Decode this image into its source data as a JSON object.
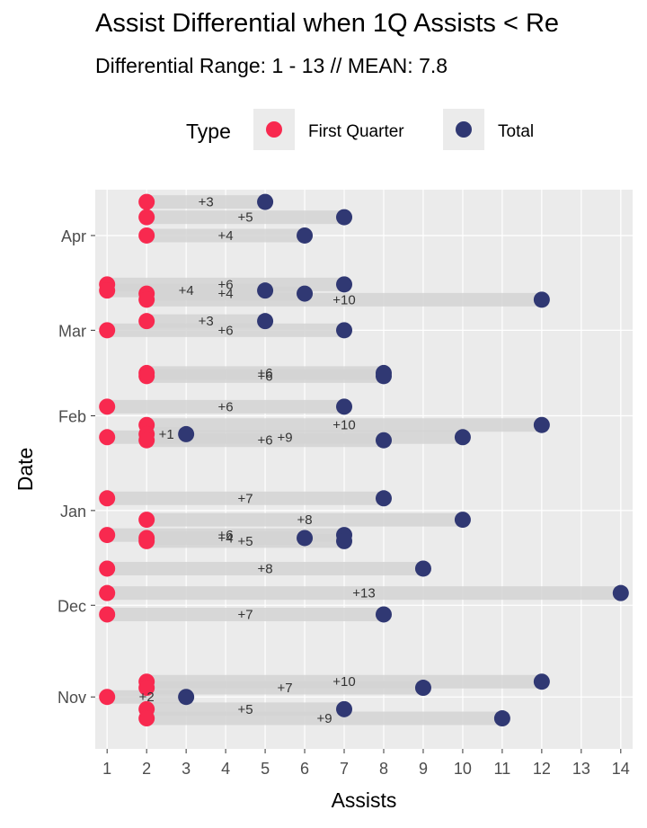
{
  "chart_data": {
    "type": "dumbbell",
    "title": "Assist Differential when 1Q Assists < Re",
    "subtitle": "Differential Range:  1 - 13 // MEAN: 7.8",
    "xlabel": "Assists",
    "ylabel": "Date",
    "xlim": [
      0.7,
      14.3
    ],
    "x_ticks": [
      1,
      2,
      3,
      4,
      5,
      6,
      7,
      8,
      9,
      10,
      11,
      12,
      13,
      14
    ],
    "y_tick_labels": [
      "Nov",
      "Dec",
      "Jan",
      "Feb",
      "Mar",
      "Apr"
    ],
    "y_tick_positions": [
      0,
      30,
      61,
      92,
      120,
      151
    ],
    "y_range": [
      -17,
      166
    ],
    "legend": {
      "title": "Type",
      "placement": "top",
      "entries": [
        {
          "label": "First Quarter",
          "color": "#f8294f"
        },
        {
          "label": "Total",
          "color": "#303873"
        }
      ]
    },
    "colors": {
      "first_quarter": "#f8294f",
      "total": "#303873",
      "segment": "#d3d3d3",
      "panel": "#ebebeb"
    },
    "series": [
      {
        "name": "First Quarter",
        "key": "first"
      },
      {
        "name": "Total",
        "key": "total"
      }
    ],
    "games": [
      {
        "day": 162,
        "first": 2,
        "total": 5,
        "label": "+3"
      },
      {
        "day": 157,
        "first": 2,
        "total": 7,
        "label": "+5"
      },
      {
        "day": 151,
        "first": 2,
        "total": 6,
        "label": "+4"
      },
      {
        "day": 135,
        "first": 1,
        "total": 7,
        "label": "+6"
      },
      {
        "day": 133,
        "first": 1,
        "total": 5,
        "label": "+4"
      },
      {
        "day": 132,
        "first": 2,
        "total": 6,
        "label": "+4"
      },
      {
        "day": 130,
        "first": 2,
        "total": 12,
        "label": "+10"
      },
      {
        "day": 123,
        "first": 2,
        "total": 5,
        "label": "+3"
      },
      {
        "day": 120,
        "first": 1,
        "total": 7,
        "label": "+6"
      },
      {
        "day": 106,
        "first": 2,
        "total": 8,
        "label": "+6"
      },
      {
        "day": 105,
        "first": 2,
        "total": 8,
        "label": "+6"
      },
      {
        "day": 95,
        "first": 1,
        "total": 7,
        "label": "+6"
      },
      {
        "day": 89,
        "first": 2,
        "total": 12,
        "label": "+10"
      },
      {
        "day": 86,
        "first": 2,
        "total": 3,
        "label": "+1"
      },
      {
        "day": 85,
        "first": 1,
        "total": 10,
        "label": "+9"
      },
      {
        "day": 84,
        "first": 2,
        "total": 8,
        "label": "+6"
      },
      {
        "day": 65,
        "first": 1,
        "total": 8,
        "label": "+7"
      },
      {
        "day": 58,
        "first": 2,
        "total": 10,
        "label": "+8"
      },
      {
        "day": 53,
        "first": 1,
        "total": 7,
        "label": "+6"
      },
      {
        "day": 52,
        "first": 2,
        "total": 6,
        "label": "+4"
      },
      {
        "day": 51,
        "first": 2,
        "total": 7,
        "label": "+5"
      },
      {
        "day": 42,
        "first": 1,
        "total": 9,
        "label": "+8"
      },
      {
        "day": 34,
        "first": 1,
        "total": 14,
        "label": "+13"
      },
      {
        "day": 27,
        "first": 1,
        "total": 8,
        "label": "+7"
      },
      {
        "day": 5,
        "first": 2,
        "total": 12,
        "label": "+10"
      },
      {
        "day": 3,
        "first": 2,
        "total": 9,
        "label": "+7"
      },
      {
        "day": 0,
        "first": 1,
        "total": 3,
        "label": "+2"
      },
      {
        "day": -4,
        "first": 2,
        "total": 7,
        "label": "+5"
      },
      {
        "day": -7,
        "first": 2,
        "total": 11,
        "label": "+9"
      }
    ]
  }
}
